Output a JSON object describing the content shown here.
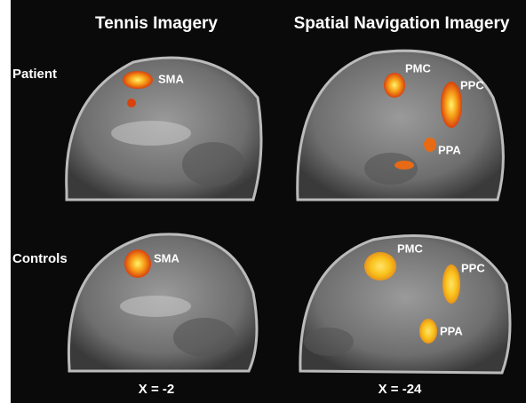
{
  "columns": [
    {
      "title": "Tennis Imagery",
      "coordinate": "X = -2"
    },
    {
      "title": "Spatial Navigation Imagery",
      "coordinate": "X = -24"
    }
  ],
  "rows": [
    {
      "label": "Patient",
      "panels": [
        {
          "regions": [
            "SMA"
          ]
        },
        {
          "regions": [
            "PMC",
            "PPC",
            "PPA"
          ]
        }
      ]
    },
    {
      "label": "Controls",
      "panels": [
        {
          "regions": [
            "SMA"
          ]
        },
        {
          "regions": [
            "PMC",
            "PPC",
            "PPA"
          ]
        }
      ]
    }
  ]
}
